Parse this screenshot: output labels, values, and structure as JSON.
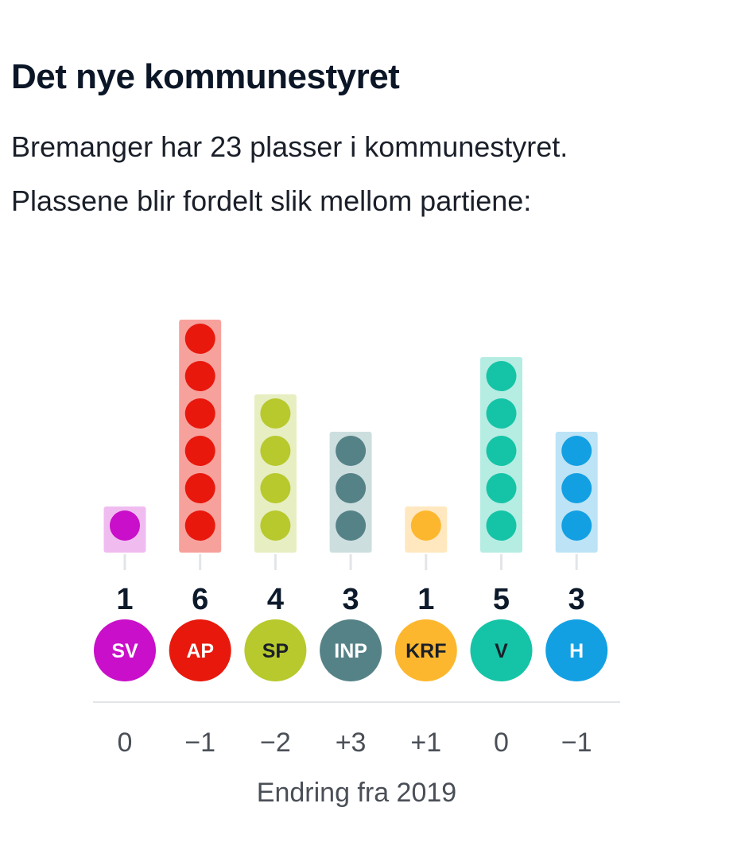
{
  "header": {
    "title": "Det nye kommunestyret",
    "subtitle_line1": "Bremanger har 23 plasser i kommunestyret.",
    "subtitle_line2": "Plassene blir fordelt slik mellom partiene:"
  },
  "chart_data": {
    "type": "bar",
    "categories": [
      "SV",
      "AP",
      "SP",
      "INP",
      "KRF",
      "V",
      "H"
    ],
    "series": [
      {
        "values": [
          1,
          6,
          4,
          3,
          1,
          5,
          3
        ]
      }
    ],
    "change_labels": [
      "0",
      "−1",
      "−2",
      "+3",
      "+1",
      "0",
      "−1"
    ],
    "change_caption": "Endring fra 2019",
    "total_seats": 23,
    "colors": {
      "SV": "#c90fc9",
      "AP": "#e8180c",
      "SP": "#b7c92c",
      "INP": "#558287",
      "KRF": "#fdb72e",
      "V": "#15c4a6",
      "H": "#12a0e3"
    },
    "bg_colors": {
      "SV": "#f0bcf0",
      "AP": "#f7a19c",
      "SP": "#e7eec1",
      "INP": "#cddedf",
      "KRF": "#ffe8bf",
      "V": "#b5ede3",
      "H": "#bde3f6"
    },
    "label_text_colors": {
      "SV": "#ffffff",
      "AP": "#ffffff",
      "SP": "#1a1f29",
      "INP": "#ffffff",
      "KRF": "#1a1f29",
      "V": "#1a1f29",
      "H": "#ffffff"
    }
  }
}
